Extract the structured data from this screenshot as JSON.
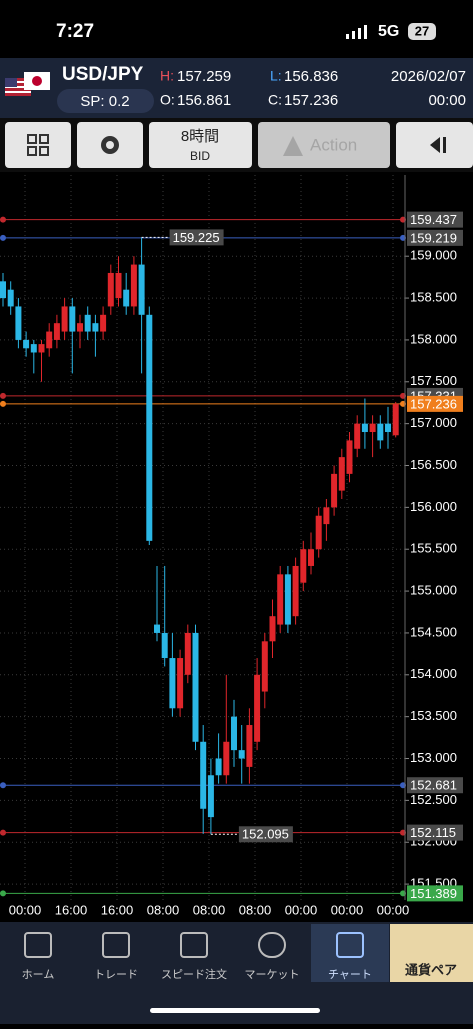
{
  "status": {
    "time": "7:27",
    "network": "5G",
    "battery": "27"
  },
  "header": {
    "pair": "USD/JPY",
    "spread": "SP: 0.2",
    "high_label": "H:",
    "high": "157.259",
    "low_label": "L:",
    "low": "156.836",
    "open_label": "O:",
    "open": "156.861",
    "close_label": "C:",
    "close": "157.236",
    "date": "2026/02/07",
    "time": "00:00"
  },
  "toolbar": {
    "timeframe": "8時間",
    "price_side": "BID",
    "action": "Action"
  },
  "chart_data": {
    "type": "candlestick",
    "up_color": "#e0262b",
    "down_color": "#2bb7e6",
    "ylim": [
      151.31,
      159.97
    ],
    "yticks": [
      {
        "value": 159,
        "label": "159.000"
      },
      {
        "value": 158.5,
        "label": "158.500"
      },
      {
        "value": 158,
        "label": "158.000"
      },
      {
        "value": 157.5,
        "label": "157.500"
      },
      {
        "value": 157,
        "label": "157.000"
      },
      {
        "value": 156.5,
        "label": "156.500"
      },
      {
        "value": 156,
        "label": "156.000"
      },
      {
        "value": 155.5,
        "label": "155.500"
      },
      {
        "value": 155,
        "label": "155.000"
      },
      {
        "value": 154.5,
        "label": "154.500"
      },
      {
        "value": 154,
        "label": "154.000"
      },
      {
        "value": 153.5,
        "label": "153.500"
      },
      {
        "value": 153,
        "label": "153.000"
      },
      {
        "value": 152.5,
        "label": "152.500"
      },
      {
        "value": 152,
        "label": "152.000"
      },
      {
        "value": 151.5,
        "label": "151.500"
      }
    ],
    "xticks": [
      "00:00",
      "16:00",
      "16:00",
      "08:00",
      "08:00",
      "08:00",
      "00:00",
      "00:00",
      "00:00"
    ],
    "grid": true,
    "levels": [
      {
        "value": 159.437,
        "color": "#c0282d"
      },
      {
        "value": 159.219,
        "color": "#3a5fc0"
      },
      {
        "value": 157.331,
        "color": "#c0282d"
      },
      {
        "value": 157.236,
        "color": "#f07f1d"
      },
      {
        "value": 152.681,
        "color": "#3a5fc0"
      },
      {
        "value": 152.115,
        "color": "#c0282d"
      },
      {
        "value": 151.389,
        "color": "#3aa84a"
      }
    ],
    "annotations": [
      {
        "candle": 18,
        "value": 159.225
      },
      {
        "candle": 27,
        "value": 152.095
      }
    ],
    "candles": [
      [
        158.7,
        158.8,
        158.4,
        158.5
      ],
      [
        158.6,
        158.7,
        158.3,
        158.4
      ],
      [
        158.4,
        158.5,
        157.9,
        158.0
      ],
      [
        158.0,
        158.1,
        157.8,
        157.9
      ],
      [
        157.95,
        158.0,
        157.6,
        157.85
      ],
      [
        157.85,
        158.0,
        157.5,
        157.95
      ],
      [
        157.9,
        158.2,
        157.8,
        158.1
      ],
      [
        158.0,
        158.3,
        157.9,
        158.2
      ],
      [
        158.1,
        158.5,
        158.0,
        158.4
      ],
      [
        158.4,
        158.5,
        157.6,
        158.1
      ],
      [
        158.1,
        158.3,
        157.9,
        158.2
      ],
      [
        158.3,
        158.4,
        158.0,
        158.1
      ],
      [
        158.2,
        158.3,
        157.8,
        158.1
      ],
      [
        158.1,
        158.4,
        158.0,
        158.3
      ],
      [
        158.4,
        158.9,
        158.3,
        158.8
      ],
      [
        158.5,
        159.0,
        158.4,
        158.8
      ],
      [
        158.6,
        158.8,
        158.3,
        158.4
      ],
      [
        158.4,
        159.0,
        158.3,
        158.9
      ],
      [
        158.9,
        159.225,
        157.6,
        158.3
      ],
      [
        158.3,
        158.4,
        155.55,
        155.6
      ],
      [
        154.6,
        155.3,
        154.4,
        154.5
      ],
      [
        154.5,
        155.3,
        154.1,
        154.2
      ],
      [
        154.2,
        154.5,
        153.5,
        153.6
      ],
      [
        153.6,
        154.3,
        153.5,
        154.2
      ],
      [
        154.0,
        154.6,
        153.9,
        154.5
      ],
      [
        154.5,
        154.6,
        153.1,
        153.2
      ],
      [
        153.2,
        153.4,
        152.1,
        152.4
      ],
      [
        152.8,
        153.0,
        152.095,
        152.3
      ],
      [
        153.0,
        153.3,
        152.7,
        152.8
      ],
      [
        152.8,
        154.0,
        152.7,
        153.2
      ],
      [
        153.5,
        153.7,
        152.9,
        153.1
      ],
      [
        153.1,
        153.4,
        152.7,
        153.0
      ],
      [
        152.9,
        153.6,
        152.7,
        153.4
      ],
      [
        153.2,
        154.2,
        153.1,
        154.0
      ],
      [
        153.8,
        154.5,
        153.6,
        154.4
      ],
      [
        154.4,
        154.9,
        154.2,
        154.7
      ],
      [
        154.6,
        155.3,
        154.5,
        155.2
      ],
      [
        155.2,
        155.3,
        154.5,
        154.6
      ],
      [
        154.7,
        155.4,
        154.6,
        155.3
      ],
      [
        155.1,
        155.6,
        155.0,
        155.5
      ],
      [
        155.3,
        155.7,
        155.2,
        155.5
      ],
      [
        155.5,
        156.0,
        155.4,
        155.9
      ],
      [
        155.8,
        156.1,
        155.6,
        156.0
      ],
      [
        156.0,
        156.5,
        155.9,
        156.4
      ],
      [
        156.2,
        156.7,
        156.1,
        156.6
      ],
      [
        156.4,
        156.9,
        156.3,
        156.8
      ],
      [
        156.7,
        157.1,
        156.6,
        157.0
      ],
      [
        157.0,
        157.3,
        156.7,
        156.9
      ],
      [
        156.9,
        157.1,
        156.6,
        157.0
      ],
      [
        157.0,
        157.1,
        156.7,
        156.8
      ],
      [
        157.0,
        157.2,
        156.7,
        156.9
      ],
      [
        156.861,
        157.259,
        156.836,
        157.236
      ]
    ]
  },
  "nav": {
    "items": [
      "ホーム",
      "トレード",
      "スピード注文",
      "マーケット",
      "チャート",
      "通貨ペア"
    ]
  }
}
